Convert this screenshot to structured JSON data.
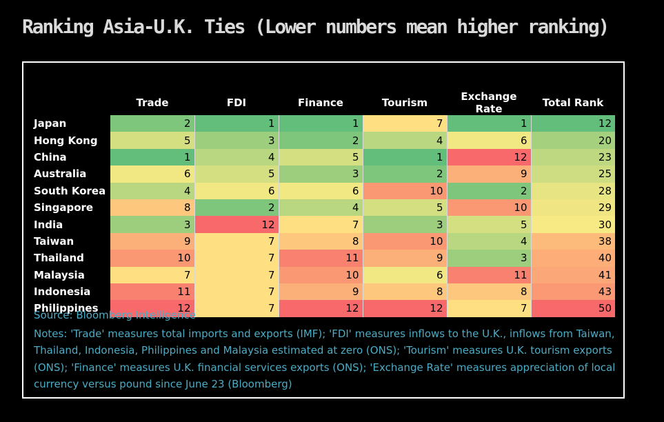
{
  "title": "Ranking Asia-U.K. Ties (Lower numbers mean higher ranking)",
  "chart_data": {
    "type": "table",
    "title": "Ranking Asia-U.K. Ties (Lower numbers mean higher ranking)",
    "columns": [
      "Trade",
      "FDI",
      "Finance",
      "Tourism",
      "Exchange Rate",
      "Total Rank"
    ],
    "rows": [
      {
        "country": "Japan",
        "values": [
          2,
          1,
          1,
          7,
          1,
          12
        ]
      },
      {
        "country": "Hong Kong",
        "values": [
          5,
          3,
          2,
          4,
          6,
          20
        ]
      },
      {
        "country": "China",
        "values": [
          1,
          4,
          5,
          1,
          12,
          23
        ]
      },
      {
        "country": "Australia",
        "values": [
          6,
          5,
          3,
          2,
          9,
          25
        ]
      },
      {
        "country": "South Korea",
        "values": [
          4,
          6,
          6,
          10,
          2,
          28
        ]
      },
      {
        "country": "Singapore",
        "values": [
          8,
          2,
          4,
          5,
          10,
          29
        ]
      },
      {
        "country": "India",
        "values": [
          3,
          12,
          7,
          3,
          5,
          30
        ]
      },
      {
        "country": "Taiwan",
        "values": [
          9,
          7,
          8,
          10,
          4,
          38
        ]
      },
      {
        "country": "Thailand",
        "values": [
          10,
          7,
          11,
          9,
          3,
          40
        ]
      },
      {
        "country": "Malaysia",
        "values": [
          7,
          7,
          10,
          6,
          11,
          41
        ]
      },
      {
        "country": "Indonesia",
        "values": [
          11,
          7,
          9,
          8,
          8,
          43
        ]
      },
      {
        "country": "Philippines",
        "values": [
          12,
          7,
          12,
          12,
          7,
          50
        ]
      }
    ],
    "color_scale": {
      "low": "#63be7b",
      "mid": "#ffeb84",
      "high": "#f8696b"
    }
  },
  "source": "Source: Bloomberg Intelligence",
  "notes": "Notes: 'Trade' measures total imports and exports (IMF); 'FDI' measures inflows to the U.K., inflows from Taiwan, Thailand, Indonesia, Philippines and Malaysia estimated at zero (ONS); 'Tourism' measures U.K. tourism exports (ONS); 'Finance' measures U.K. financial services exports (ONS); 'Exchange Rate' measures appreciation of local currency versus pound since June 23 (Bloomberg)"
}
